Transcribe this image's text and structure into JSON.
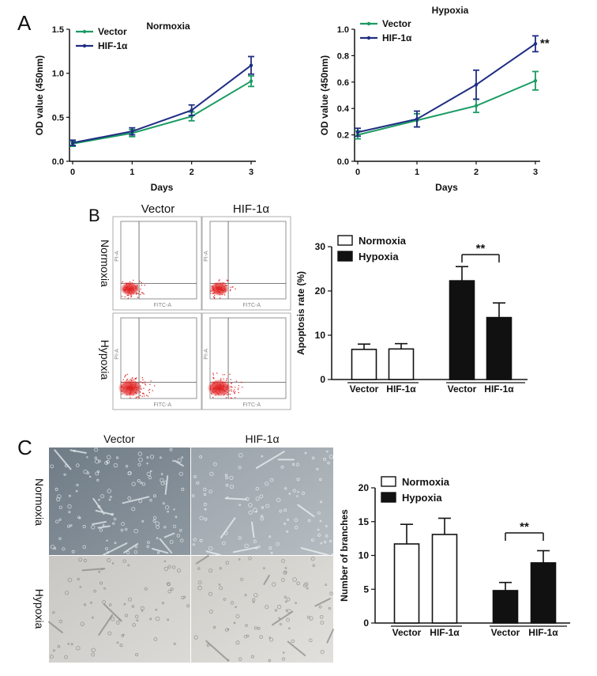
{
  "panels": {
    "A": "A",
    "B": "B",
    "C": "C"
  },
  "colors": {
    "vector": "#1a9b63",
    "hif": "#1f2d82",
    "normoxia_bar": "#ffffff",
    "hypoxia_bar": "#111111",
    "flow_dots": "#e02424"
  },
  "flow": {
    "col_labels": [
      "Vector",
      "HIF-1α"
    ],
    "row_labels": [
      "Normoxia",
      "Hypoxia"
    ],
    "x_axis_text": "FITC-A",
    "y_axis_text": "PI-A"
  },
  "micro": {
    "col_labels": [
      "Vector",
      "HIF-1α"
    ],
    "row_labels": [
      "Normoxia",
      "Hypoxia"
    ]
  },
  "chart_data": [
    {
      "id": "normoxia-growth",
      "type": "line",
      "title": "Normoxia",
      "xlabel": "Days",
      "ylabel": "OD value (450nm)",
      "x": [
        0,
        1,
        2,
        3
      ],
      "xticks": [
        "0",
        "1",
        "2",
        "3"
      ],
      "ylim": [
        0,
        1.5
      ],
      "yticks": [
        "0.0",
        "0.5",
        "1.0",
        "1.5"
      ],
      "legend": [
        "Vector",
        "HIF-1α"
      ],
      "series": [
        {
          "name": "Vector",
          "values": [
            0.2,
            0.32,
            0.51,
            0.91
          ],
          "err": [
            0.03,
            0.04,
            0.05,
            0.06
          ]
        },
        {
          "name": "HIF-1α",
          "values": [
            0.21,
            0.34,
            0.58,
            1.09
          ],
          "err": [
            0.03,
            0.04,
            0.06,
            0.1
          ]
        }
      ],
      "annotations": []
    },
    {
      "id": "hypoxia-growth",
      "type": "line",
      "title": "Hypoxia",
      "xlabel": "Days",
      "ylabel": "OD value (450nm)",
      "x": [
        0,
        1,
        2,
        3
      ],
      "xticks": [
        "0",
        "1",
        "2",
        "3"
      ],
      "ylim": [
        0,
        1.0
      ],
      "yticks": [
        "0.0",
        "0.2",
        "0.4",
        "0.6",
        "0.8",
        "1.0"
      ],
      "legend": [
        "Vector",
        "HIF-1α"
      ],
      "series": [
        {
          "name": "Vector",
          "values": [
            0.2,
            0.31,
            0.42,
            0.61
          ],
          "err": [
            0.03,
            0.05,
            0.05,
            0.07
          ]
        },
        {
          "name": "HIF-1α",
          "values": [
            0.22,
            0.32,
            0.58,
            0.89
          ],
          "err": [
            0.03,
            0.06,
            0.11,
            0.06
          ]
        }
      ],
      "annotations": [
        "**"
      ]
    },
    {
      "id": "apoptosis-rate",
      "type": "bar",
      "ylabel": "Apoptosis rate (%)",
      "ylim": [
        0,
        30
      ],
      "yticks": [
        "0",
        "10",
        "20",
        "30"
      ],
      "categories": [
        "Vector",
        "HIF-1α",
        "Vector",
        "HIF-1α"
      ],
      "groups": [
        "Normoxia",
        "Hypoxia"
      ],
      "legend": [
        "Normoxia",
        "Hypoxia"
      ],
      "values": [
        6.8,
        6.9,
        22.3,
        14.0
      ],
      "err": [
        1.2,
        1.2,
        3.2,
        3.3
      ],
      "annotations": [
        "**"
      ]
    },
    {
      "id": "branches",
      "type": "bar",
      "ylabel": "Number of branches",
      "ylim": [
        0,
        20
      ],
      "yticks": [
        "0",
        "5",
        "10",
        "15",
        "20"
      ],
      "categories": [
        "Vector",
        "HIF-1α",
        "Vector",
        "HIF-1α"
      ],
      "groups": [
        "Normoxia",
        "Hypoxia"
      ],
      "legend": [
        "Normoxia",
        "Hypoxia"
      ],
      "values": [
        11.7,
        13.1,
        4.8,
        8.9
      ],
      "err": [
        2.9,
        2.4,
        1.2,
        1.8
      ],
      "annotations": [
        "**"
      ]
    }
  ]
}
